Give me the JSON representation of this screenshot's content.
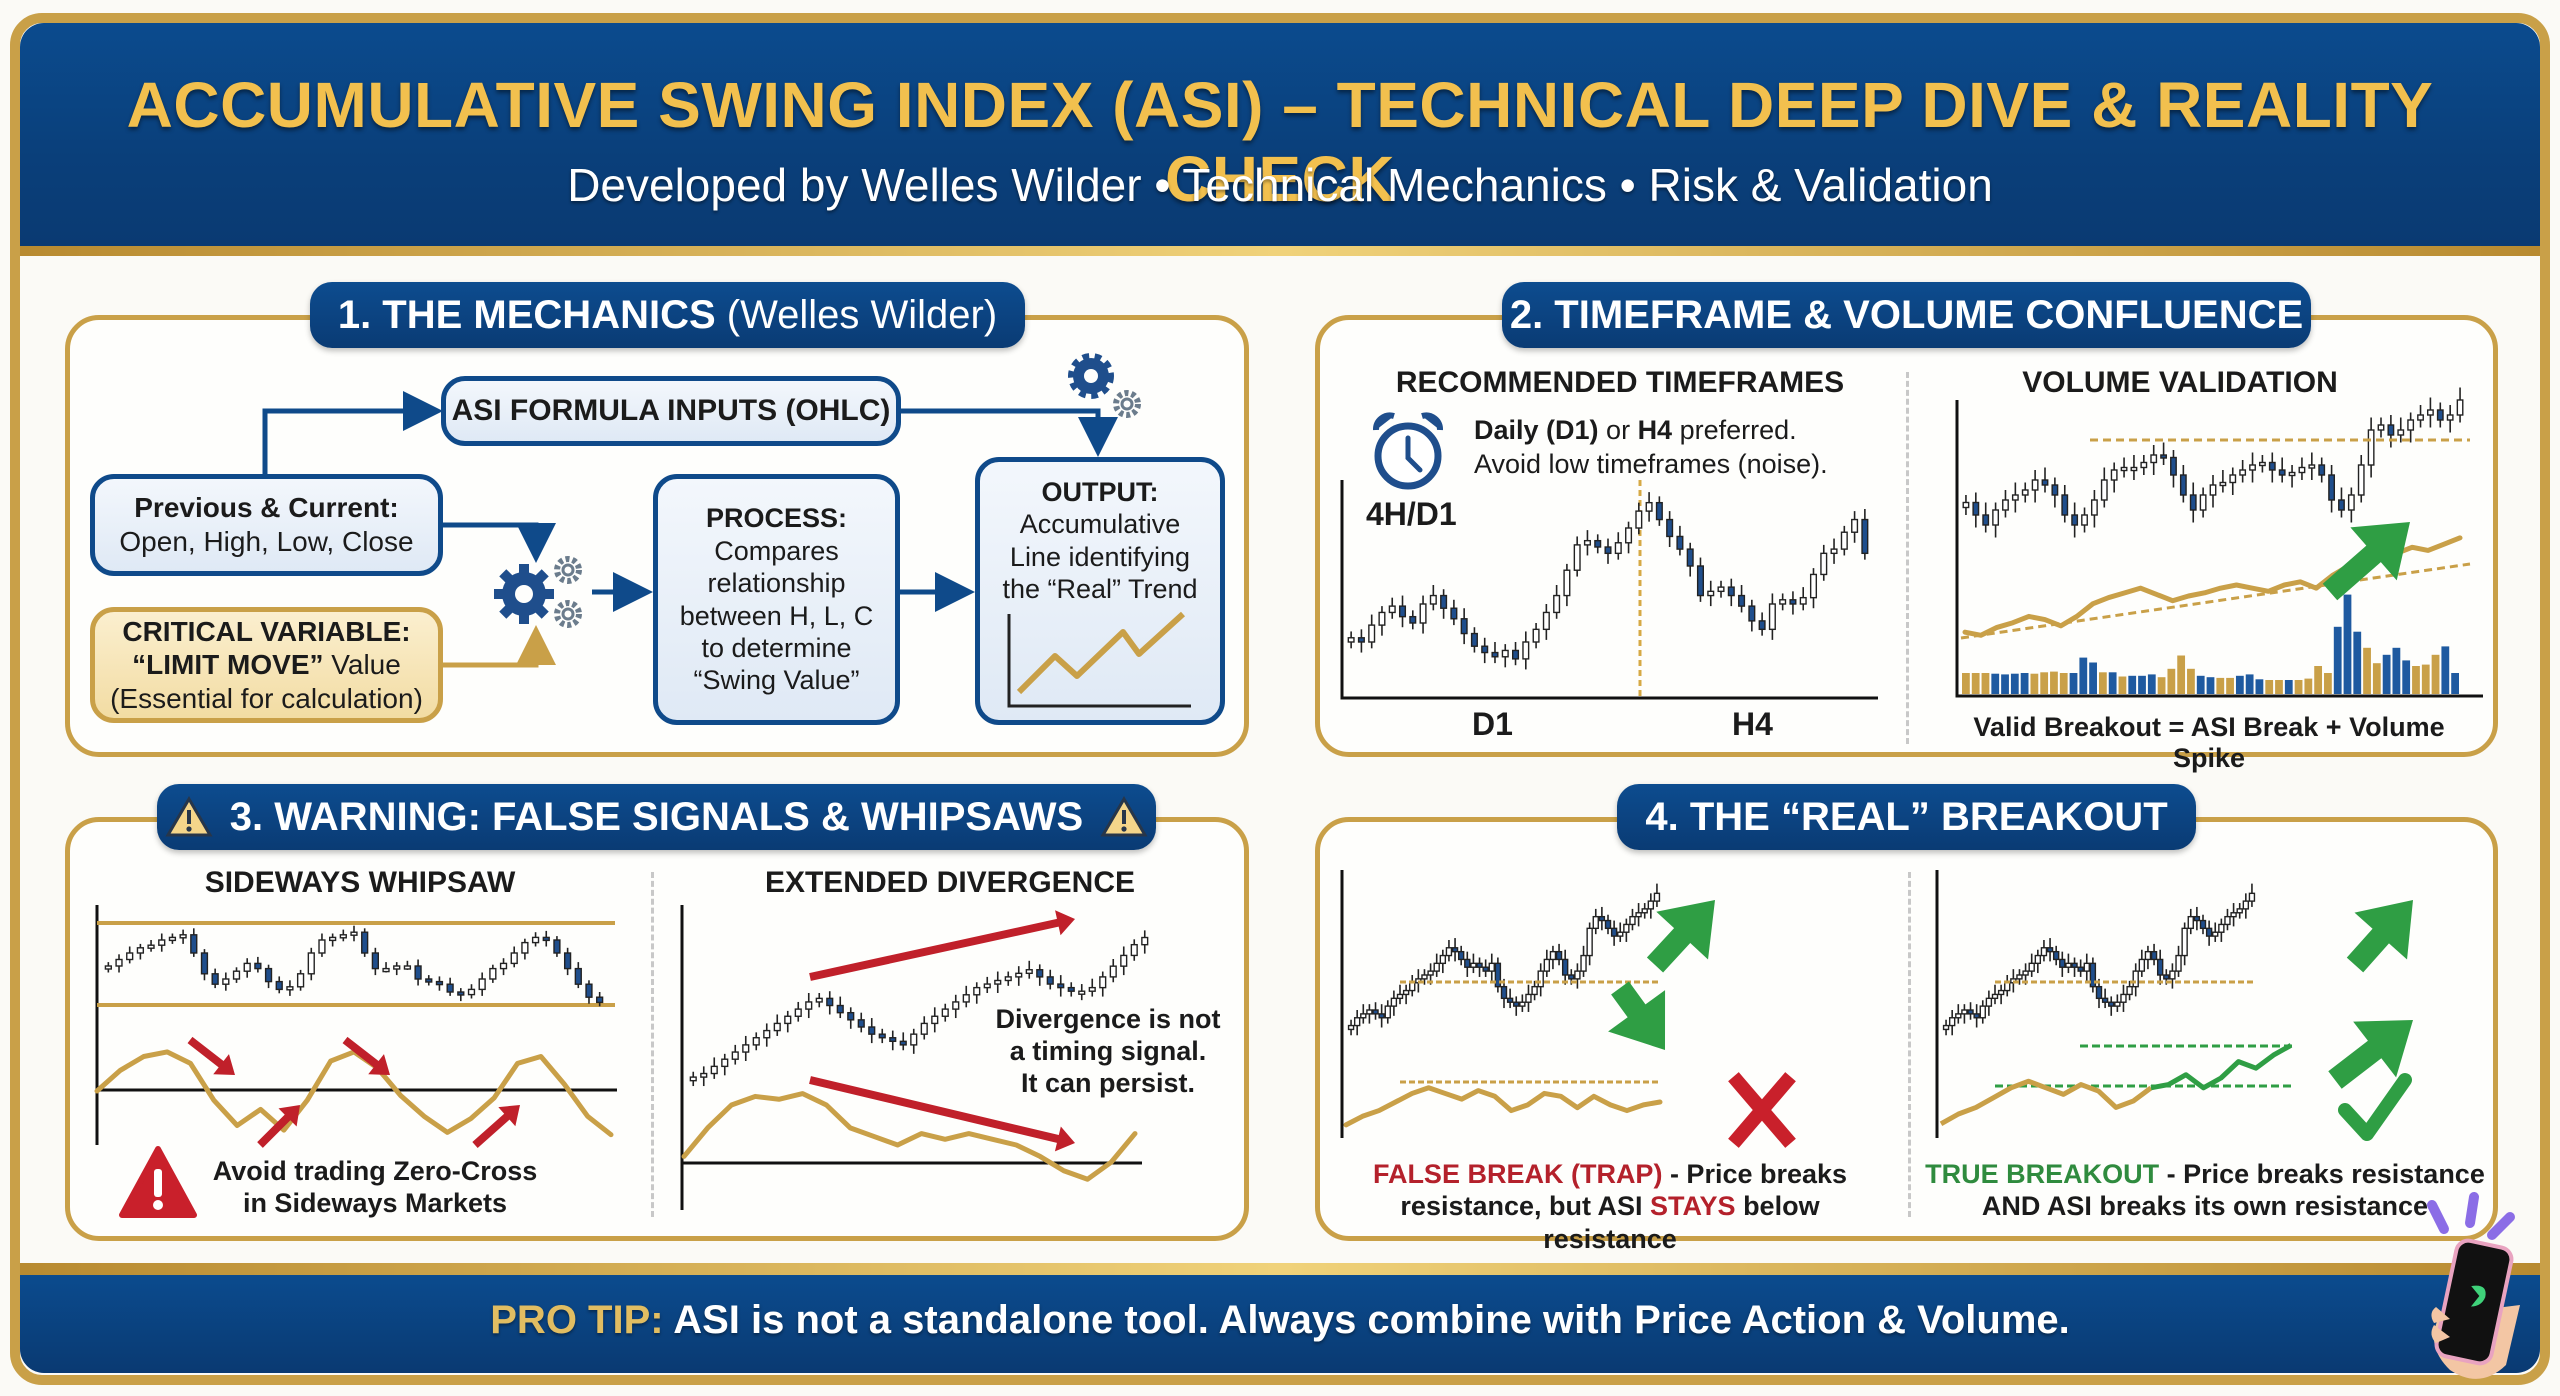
{
  "header": {
    "title": "ACCUMULATIVE SWING INDEX (ASI) – TECHNICAL DEEP DIVE & REALITY CHECK",
    "subtitle": "Developed by Welles Wilder • Technical Mechanics • Risk & Validation"
  },
  "colors": {
    "navy": "#0b4b8e",
    "gold": "#c9a048",
    "title_gold": "#f2c04e",
    "asi_line": "#c9a048",
    "bull_candle": "#ffffff",
    "bear_candle": "#1f4e8c",
    "arrow_green": "#2f9e44",
    "arrow_red": "#c0202a"
  },
  "section1": {
    "title_bold": "1. THE MECHANICS",
    "title_light": "(Welles Wilder)",
    "formula_inputs": "ASI FORMULA INPUTS (OHLC)",
    "prev_current": {
      "heading": "Previous & Current:",
      "body": "Open, High, Low, Close"
    },
    "critical": {
      "heading": "CRITICAL VARIABLE:",
      "line2_bold": "“LIMIT MOVE”",
      "line2_rest": " Value",
      "line3": "(Essential for calculation)"
    },
    "process": {
      "heading": "PROCESS:",
      "lines": [
        "Compares",
        "relationship",
        "between H, L, C",
        "to determine",
        "“Swing Value”"
      ]
    },
    "output": {
      "heading": "OUTPUT:",
      "lines": [
        "Accumulative",
        "Line identifying",
        "the “Real” Trend"
      ]
    }
  },
  "section2": {
    "title": "2. TIMEFRAME & VOLUME CONFLUENCE",
    "left": {
      "heading": "RECOMMENDED TIMEFRAMES",
      "note_line1_bold1": "Daily (D1)",
      "note_line1_mid": " or ",
      "note_line1_bold2": "H4",
      "note_line1_end": " preferred.",
      "note_line2": "Avoid low timeframes (noise).",
      "chart_label": "4H/D1",
      "x_labels": [
        "D1",
        "H4"
      ]
    },
    "right": {
      "heading": "VOLUME VALIDATION",
      "caption": "Valid Breakout = ASI Break + Volume Spike"
    }
  },
  "section3": {
    "title": "3. WARNING: FALSE SIGNALS & WHIPSAWS",
    "left": {
      "heading": "SIDEWAYS WHIPSAW",
      "warning_line1": "Avoid trading Zero-Cross",
      "warning_line2": "in Sideways Markets"
    },
    "right": {
      "heading": "EXTENDED DIVERGENCE",
      "note_lines": [
        "Divergence is not",
        "a timing signal.",
        "It can persist."
      ]
    }
  },
  "section4": {
    "title": "4. THE “REAL” BREAKOUT",
    "left": {
      "label_colored": "FALSE BREAK (TRAP)",
      "label_rest": " - Price breaks",
      "line2_a": "resistance, but ASI ",
      "line2_colored": "STAYS",
      "line2_b": " below resistance"
    },
    "right": {
      "label_colored": "TRUE BREAKOUT",
      "label_rest": " - Price breaks resistance",
      "line2": "AND ASI breaks its own resistance"
    }
  },
  "footer": {
    "tip_label": "PRO TIP:",
    "tip_text": " ASI is not a standalone tool. Always combine with Price Action & Volume."
  },
  "chart_data": [
    {
      "id": "timeframes",
      "type": "candlestick",
      "title": "4H/D1",
      "xlabel_left": "D1",
      "xlabel_right": "H4",
      "close": [
        40,
        38,
        46,
        52,
        55,
        50,
        47,
        56,
        60,
        54,
        49,
        42,
        36,
        33,
        31,
        34,
        30,
        38,
        44,
        52,
        60,
        72,
        84,
        86,
        83,
        80,
        85,
        92,
        100,
        104,
        96,
        88,
        82,
        74,
        60,
        62,
        64,
        60,
        55,
        48,
        44,
        56,
        58,
        56,
        59,
        70,
        80,
        82,
        90,
        96,
        80
      ]
    },
    {
      "id": "volume_validation",
      "type": "candlestick+line+bar",
      "price": [
        55,
        50,
        46,
        52,
        56,
        58,
        60,
        64,
        62,
        58,
        50,
        46,
        50,
        56,
        64,
        68,
        69,
        69,
        71,
        74,
        73,
        66,
        58,
        52,
        58,
        62,
        63,
        66,
        68,
        70,
        71,
        68,
        66,
        67,
        69,
        70,
        66,
        56,
        52,
        58,
        70,
        84,
        86,
        82,
        84,
        88,
        90,
        92,
        88,
        90,
        96
      ],
      "resistance_level": 80,
      "asi": [
        30,
        28,
        33,
        36,
        40,
        38,
        34,
        40,
        48,
        52,
        55,
        58,
        54,
        50,
        53,
        55,
        58,
        60,
        58,
        56,
        60,
        62,
        58,
        66,
        72,
        74,
        78,
        80,
        84,
        82,
        86,
        90
      ],
      "volume": [
        [
          30,
          "g"
        ],
        [
          30,
          "g"
        ],
        [
          30,
          "g"
        ],
        [
          29,
          "b"
        ],
        [
          28,
          "b"
        ],
        [
          29,
          "b"
        ],
        [
          30,
          "b"
        ],
        [
          29,
          "g"
        ],
        [
          31,
          "g"
        ],
        [
          32,
          "g"
        ],
        [
          30,
          "g"
        ],
        [
          30,
          "b"
        ],
        [
          52,
          "b"
        ],
        [
          45,
          "b"
        ],
        [
          31,
          "g"
        ],
        [
          31,
          "b"
        ],
        [
          25,
          "g"
        ],
        [
          26,
          "b"
        ],
        [
          26,
          "b"
        ],
        [
          28,
          "b"
        ],
        [
          24,
          "g"
        ],
        [
          36,
          "g"
        ],
        [
          55,
          "g"
        ],
        [
          36,
          "g"
        ],
        [
          26,
          "b"
        ],
        [
          24,
          "b"
        ],
        [
          23,
          "g"
        ],
        [
          23,
          "g"
        ],
        [
          26,
          "b"
        ],
        [
          28,
          "b"
        ],
        [
          21,
          "b"
        ],
        [
          20,
          "g"
        ],
        [
          20,
          "g"
        ],
        [
          20,
          "b"
        ],
        [
          20,
          "g"
        ],
        [
          22,
          "g"
        ],
        [
          40,
          "g"
        ],
        [
          30,
          "g"
        ],
        [
          96,
          "b"
        ],
        [
          142,
          "b"
        ],
        [
          89,
          "b"
        ],
        [
          66,
          "g"
        ],
        [
          44,
          "g"
        ],
        [
          56,
          "b"
        ],
        [
          66,
          "b"
        ],
        [
          48,
          "b"
        ],
        [
          40,
          "g"
        ],
        [
          42,
          "g"
        ],
        [
          56,
          "g"
        ],
        [
          68,
          "b"
        ],
        [
          30,
          "b"
        ]
      ]
    },
    {
      "id": "sideways_whipsaw",
      "type": "candlestick+oscillator",
      "price": [
        50,
        55,
        60,
        64,
        66,
        70,
        72,
        74,
        60,
        44,
        36,
        40,
        46,
        52,
        48,
        38,
        32,
        34,
        44,
        60,
        70,
        72,
        74,
        76,
        60,
        48,
        48,
        50,
        50,
        40,
        38,
        36,
        30,
        28,
        32,
        40,
        48,
        52,
        60,
        68,
        72,
        70,
        60,
        48,
        36,
        26,
        22
      ],
      "oscillator": [
        0,
        18,
        30,
        34,
        24,
        -8,
        -30,
        -16,
        -34,
        -8,
        26,
        34,
        20,
        -4,
        -22,
        -36,
        -24,
        -6,
        24,
        30,
        6,
        -22,
        -38
      ]
    },
    {
      "id": "extended_divergence",
      "type": "candlestick+oscillator",
      "price": [
        10,
        12,
        16,
        20,
        24,
        28,
        32,
        36,
        40,
        44,
        48,
        52,
        54,
        50,
        46,
        42,
        38,
        34,
        32,
        30,
        28,
        34,
        40,
        44,
        48,
        52,
        56,
        60,
        62,
        64,
        66,
        68,
        70,
        66,
        62,
        60,
        58,
        58,
        60,
        66,
        72,
        78,
        84,
        88
      ],
      "oscillator": [
        0,
        20,
        36,
        42,
        40,
        44,
        36,
        20,
        14,
        8,
        16,
        12,
        16,
        12,
        8,
        0,
        -10,
        -16,
        -4,
        16
      ]
    },
    {
      "id": "false_break",
      "type": "candlestick+line",
      "price": [
        20,
        24,
        26,
        28,
        26,
        24,
        30,
        34,
        36,
        38,
        42,
        44,
        46,
        48,
        52,
        56,
        60,
        58,
        54,
        50,
        52,
        50,
        48,
        52,
        40,
        34,
        32,
        30,
        32,
        36,
        40,
        48,
        54,
        58,
        54,
        46,
        44,
        48,
        56,
        70,
        76,
        74,
        70,
        66,
        68,
        72,
        76,
        78,
        80,
        84,
        88
      ],
      "asi": [
        10,
        16,
        20,
        26,
        32,
        36,
        32,
        28,
        34,
        30,
        20,
        24,
        32,
        30,
        22,
        30,
        24,
        20,
        24,
        26
      ]
    },
    {
      "id": "true_breakout",
      "type": "candlestick+line",
      "price": [
        20,
        24,
        26,
        28,
        26,
        24,
        30,
        34,
        36,
        38,
        42,
        44,
        46,
        48,
        52,
        56,
        60,
        58,
        54,
        50,
        52,
        50,
        48,
        52,
        40,
        34,
        32,
        30,
        32,
        36,
        40,
        48,
        54,
        58,
        54,
        46,
        44,
        48,
        56,
        70,
        76,
        74,
        70,
        66,
        68,
        72,
        76,
        78,
        80,
        84,
        88
      ],
      "asi": [
        10,
        16,
        20,
        26,
        32,
        36,
        32,
        28,
        34,
        30,
        20,
        24,
        32,
        34,
        40,
        32,
        38,
        48,
        44,
        52,
        58
      ]
    }
  ]
}
